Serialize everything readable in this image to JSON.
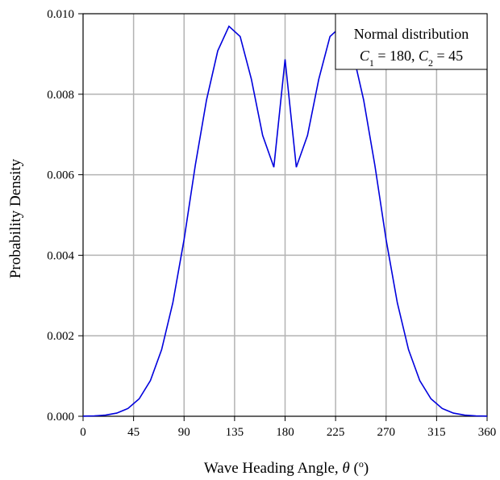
{
  "chart_data": {
    "type": "line",
    "xlabel": "Wave Heading Angle, θ (°)",
    "xlabel_parts": {
      "text": "Wave Heading Angle, ",
      "symbol": "θ",
      "open": " (",
      "degree": "o",
      "close": ")"
    },
    "ylabel": "Probability Density",
    "xlim": [
      0,
      360
    ],
    "ylim": [
      0,
      0.01
    ],
    "xticks": [
      0,
      45,
      90,
      135,
      180,
      225,
      270,
      315,
      360
    ],
    "xtick_labels": [
      "0",
      "45",
      "90",
      "135",
      "180",
      "225",
      "270",
      "315",
      "360"
    ],
    "yticks": [
      0,
      0.002,
      0.004,
      0.006,
      0.008,
      0.01
    ],
    "ytick_labels": [
      "0.000",
      "0.002",
      "0.004",
      "0.006",
      "0.008",
      "0.010"
    ],
    "grid": true,
    "legend_position": "top-right",
    "legend": {
      "line1": "Normal distribution",
      "c1_var": "C",
      "c1_sub": "1",
      "c1_eq": " = 180,",
      "c2_var": "C",
      "c2_sub": "2",
      "c2_eq": " = 45"
    },
    "series": [
      {
        "color": "#0000dd",
        "x": [
          0,
          10,
          20,
          30,
          40,
          50,
          60,
          70,
          80,
          90,
          100,
          110,
          120,
          130,
          140,
          150,
          160,
          170,
          180,
          190,
          200,
          210,
          220,
          230,
          240,
          250,
          260,
          270,
          280,
          290,
          300,
          310,
          320,
          330,
          340,
          350,
          360
        ],
        "y": [
          3e-06,
          1e-05,
          2.9e-05,
          7.9e-05,
          0.000193,
          0.000433,
          0.000886,
          0.001655,
          0.002821,
          0.00439,
          0.006234,
          0.007858,
          0.009077,
          0.009688,
          0.009432,
          0.00837,
          0.006978,
          0.006187,
          0.008866,
          0.006187,
          0.006978,
          0.00837,
          0.009432,
          0.009688,
          0.009077,
          0.007858,
          0.006234,
          0.00439,
          0.002821,
          0.001655,
          0.000886,
          0.000433,
          0.000193,
          7.9e-05,
          2.9e-05,
          1e-05,
          3e-06
        ]
      }
    ]
  }
}
